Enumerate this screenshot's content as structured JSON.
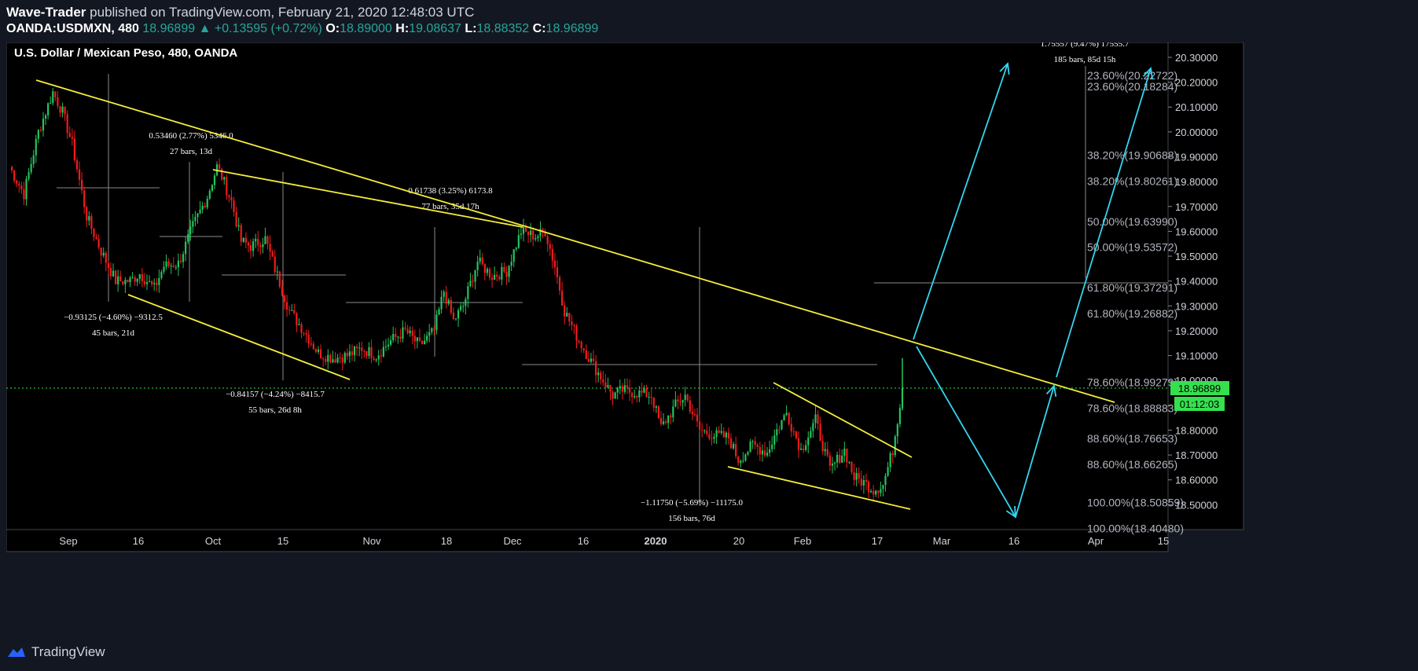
{
  "header": {
    "author": "Wave-Trader",
    "published": "published on TradingView.com, February 21, 2020 12:48:03 UTC",
    "symbol": "OANDA:USDMXN, 480",
    "last": "18.96899",
    "change": "+0.13595 (+0.72%)",
    "o_label": "O:",
    "o_value": "18.89000",
    "h_label": "H:",
    "h_value": "19.08637",
    "l_label": "L:",
    "l_value": "18.88352",
    "c_label": "C:",
    "c_value": "18.96899"
  },
  "chart_title": "U.S. Dollar / Mexican Peso, 480, OANDA",
  "footer": {
    "brand": "TradingView"
  },
  "colors": {
    "background": "#000000",
    "up": "#22c55e",
    "down": "#ef1c1c",
    "trendline": "#f5ee3a",
    "projection": "#33d6f0",
    "price_tag": "#35e04f",
    "axis_text": "#d1d4dc",
    "measure": "#8a8a8a"
  },
  "chart_data": {
    "type": "candlestick",
    "symbol": "USDMXN",
    "ylim": [
      18.4,
      20.36
    ],
    "y_ticks": [
      "20.30000",
      "20.20000",
      "20.10000",
      "20.00000",
      "19.90000",
      "19.80000",
      "19.70000",
      "19.60000",
      "19.50000",
      "19.40000",
      "19.30000",
      "19.20000",
      "19.10000",
      "19.00000",
      "18.90000",
      "18.80000",
      "18.70000",
      "18.60000",
      "18.50000"
    ],
    "x_ticks": [
      "Sep",
      "16",
      "Oct",
      "15",
      "Nov",
      "18",
      "Dec",
      "16",
      "2020",
      "20",
      "Feb",
      "17",
      "Mar",
      "16",
      "Apr",
      "15"
    ],
    "price_close_path": [
      [
        0,
        19.86
      ],
      [
        3,
        19.75
      ],
      [
        6,
        20.0
      ],
      [
        9,
        20.16
      ],
      [
        11,
        20.08
      ],
      [
        13,
        19.95
      ],
      [
        16,
        19.66
      ],
      [
        19,
        19.52
      ],
      [
        22,
        19.4
      ],
      [
        25,
        19.4
      ],
      [
        27,
        19.43
      ],
      [
        30,
        19.37
      ],
      [
        32,
        19.46
      ],
      [
        35,
        19.47
      ],
      [
        38,
        19.62
      ],
      [
        41,
        19.74
      ],
      [
        43,
        19.86
      ],
      [
        44,
        19.82
      ],
      [
        46,
        19.72
      ],
      [
        48,
        19.56
      ],
      [
        50,
        19.54
      ],
      [
        53,
        19.57
      ],
      [
        55,
        19.45
      ],
      [
        58,
        19.28
      ],
      [
        61,
        19.2
      ],
      [
        64,
        19.11
      ],
      [
        67,
        19.09
      ],
      [
        70,
        19.1
      ],
      [
        73,
        19.13
      ],
      [
        76,
        19.1
      ],
      [
        79,
        19.16
      ],
      [
        82,
        19.2
      ],
      [
        85,
        19.14
      ],
      [
        88,
        19.2
      ],
      [
        90,
        19.36
      ],
      [
        92,
        19.24
      ],
      [
        94,
        19.3
      ],
      [
        97,
        19.48
      ],
      [
        100,
        19.42
      ],
      [
        103,
        19.44
      ],
      [
        106,
        19.6
      ],
      [
        109,
        19.58
      ],
      [
        111,
        19.6
      ],
      [
        113,
        19.46
      ],
      [
        115,
        19.28
      ],
      [
        118,
        19.16
      ],
      [
        121,
        19.06
      ],
      [
        123,
        19.0
      ],
      [
        125,
        18.94
      ],
      [
        127,
        18.96
      ],
      [
        130,
        18.95
      ],
      [
        133,
        18.94
      ],
      [
        135,
        18.81
      ],
      [
        138,
        18.9
      ],
      [
        140,
        18.94
      ],
      [
        143,
        18.8
      ],
      [
        146,
        18.78
      ],
      [
        149,
        18.77
      ],
      [
        151,
        18.68
      ],
      [
        154,
        18.74
      ],
      [
        157,
        18.71
      ],
      [
        159,
        18.8
      ],
      [
        161,
        18.87
      ],
      [
        164,
        18.72
      ],
      [
        167,
        18.84
      ],
      [
        170,
        18.64
      ],
      [
        173,
        18.72
      ],
      [
        175,
        18.61
      ],
      [
        177,
        18.59
      ],
      [
        179,
        18.56
      ],
      [
        181,
        18.58
      ],
      [
        183,
        18.72
      ],
      [
        185,
        18.97
      ]
    ],
    "trendlines": [
      {
        "name": "main-resistance",
        "from": [
          "Sep (early)",
          20.21
        ],
        "to": [
          "Apr 8",
          18.93
        ]
      },
      {
        "name": "channel-top",
        "from": [
          "Oct",
          19.86
        ],
        "to": [
          "Dec",
          19.64
        ]
      },
      {
        "name": "channel-bottom",
        "from": [
          "Sep 16",
          19.36
        ],
        "to": [
          "Nov",
          19.01
        ]
      },
      {
        "name": "wedge-top",
        "from": [
          "Jan 27",
          18.96
        ],
        "to": [
          "Feb 24",
          18.69
        ]
      },
      {
        "name": "wedge-bottom",
        "from": [
          "Jan 20",
          18.66
        ],
        "to": [
          "Feb 24",
          18.49
        ]
      }
    ],
    "projection": [
      {
        "from": [
          "Feb 24",
          19.17
        ],
        "to": [
          "Mar 16",
          20.28
        ]
      },
      {
        "from": [
          "Feb 24",
          19.14
        ],
        "to": [
          "Mar 16",
          18.47
        ]
      },
      {
        "from": [
          "Mar 16",
          18.47
        ],
        "to": [
          "Mar 27",
          18.98
        ]
      },
      {
        "from": [
          "Mar 27",
          19.02
        ],
        "to": [
          "Apr 11",
          20.26
        ]
      }
    ],
    "fib_levels": [
      "23.60%(20.22722)",
      "23.60%(20.18284)",
      "38.20%(19.90688)",
      "38.20%(19.80261)",
      "50.00%(19.63990)",
      "50.00%(19.53572)",
      "61.80%(19.37291)",
      "61.80%(19.26882)",
      "78.60%(18.99279)",
      "78.60%(18.88883)",
      "88.60%(18.76653)",
      "88.60%(18.66265)",
      "100.00%(18.50859)",
      "100.00%(18.40480)"
    ],
    "measurements": [
      {
        "line1": "0.53460 (2.77%) 5346.0",
        "line2": "27 bars, 13d"
      },
      {
        "line1": "−0.93125 (−4.60%) −9312.5",
        "line2": "45 bars, 21d"
      },
      {
        "line1": "0.61738 (3.25%) 6173.8",
        "line2": "77 bars, 35d 17h"
      },
      {
        "line1": "−0.84157 (−4.24%) −8415.7",
        "line2": "55 bars, 26d 8h"
      },
      {
        "line1": "−1.11750 (−5.69%) −11175.0",
        "line2": "156 bars, 76d"
      },
      {
        "line1": "1.75557 (9.47%) 17555.7",
        "line2": "185 bars, 85d 15h"
      }
    ],
    "current_price": {
      "value": "18.96899",
      "countdown": "01:12:03"
    }
  }
}
